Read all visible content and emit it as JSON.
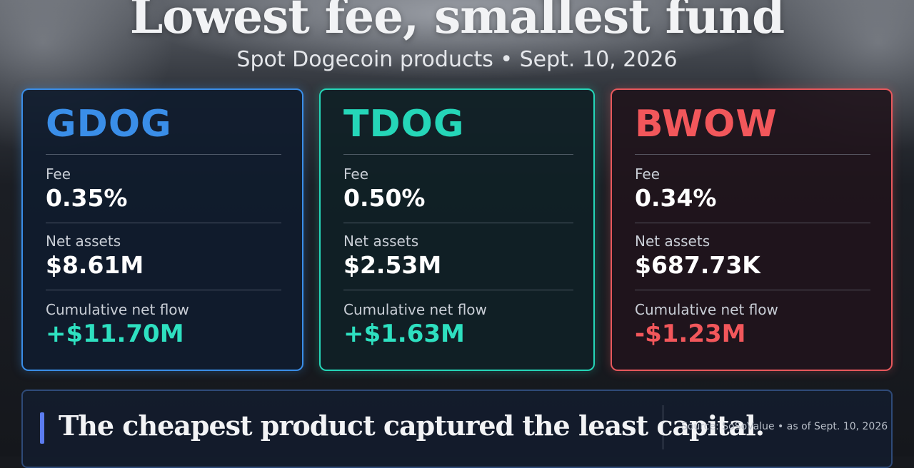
{
  "header": {
    "title": "Lowest fee, smallest fund",
    "subtitle": "Spot Dogecoin products • Sept. 10, 2026"
  },
  "cards": [
    {
      "ticker": "GDOG",
      "accent_color": "#3a8ee8",
      "fee_label": "Fee",
      "fee": "0.35%",
      "assets_label": "Net assets",
      "assets": "$8.61M",
      "flow_label": "Cumulative net flow",
      "flow": "+$11.70M",
      "flow_color": "#2ee0c0"
    },
    {
      "ticker": "TDOG",
      "accent_color": "#25d6b8",
      "fee_label": "Fee",
      "fee": "0.50%",
      "assets_label": "Net assets",
      "assets": "$2.53M",
      "flow_label": "Cumulative net flow",
      "flow": "+$1.63M",
      "flow_color": "#2ee0c0"
    },
    {
      "ticker": "BWOW",
      "accent_color": "#e8585c",
      "fee_label": "Fee",
      "fee": "0.34%",
      "assets_label": "Net assets",
      "assets": "$687.73K",
      "flow_label": "Cumulative net flow",
      "flow": "-$1.23M",
      "flow_color": "#f2575b"
    }
  ],
  "footer": {
    "takeaway": "The cheapest product captured the least capital.",
    "source": "Source: SoSoValue • as of Sept. 10, 2026"
  }
}
